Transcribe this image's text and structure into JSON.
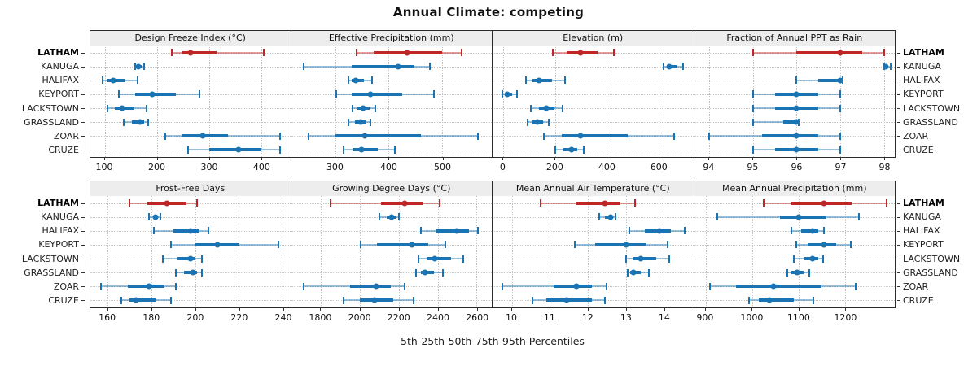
{
  "title": "Annual Climate: competing",
  "caption": "5th-25th-50th-75th-95th Percentiles",
  "stations": [
    "LATHAM",
    "KANUGA",
    "HALIFAX",
    "KEYPORT",
    "LACKSTOWN",
    "GRASSLAND",
    "ZOAR",
    "CRUZE"
  ],
  "highlight_station": "LATHAM",
  "colors": {
    "highlight": "#c02626",
    "normal": "#1a74b4",
    "strip_bg": "#ededed",
    "panel_border": "#2b2b2b",
    "grid": "#c7c7c7"
  },
  "chart_data": [
    {
      "type": "dotplot-interval",
      "label": "Design Freeze Index (°C)",
      "row": 1,
      "xlim": [
        72,
        456
      ],
      "ticks": [
        100,
        200,
        300,
        400
      ],
      "percentile_labels": [
        "5th",
        "25th",
        "50th",
        "75th",
        "95th"
      ],
      "series": [
        {
          "station": "LATHAM",
          "q": [
            229,
            247,
            265,
            315,
            405
          ]
        },
        {
          "station": "KANUGA",
          "q": [
            158,
            161,
            165,
            170,
            175
          ]
        },
        {
          "station": "HALIFAX",
          "q": [
            95,
            105,
            116,
            140,
            162
          ]
        },
        {
          "station": "KEYPORT",
          "q": [
            127,
            158,
            191,
            237,
            281
          ]
        },
        {
          "station": "LACKSTOWN",
          "q": [
            105,
            119,
            133,
            157,
            180
          ]
        },
        {
          "station": "GRASSLAND",
          "q": [
            136,
            152,
            167,
            176,
            183
          ]
        },
        {
          "station": "ZOAR",
          "q": [
            216,
            247,
            288,
            336,
            436
          ]
        },
        {
          "station": "CRUZE",
          "q": [
            259,
            300,
            357,
            400,
            436
          ]
        }
      ]
    },
    {
      "type": "dotplot-interval",
      "label": "Effective Precipitation (mm)",
      "row": 1,
      "xlim": [
        217,
        593
      ],
      "ticks": [
        300,
        400,
        500
      ],
      "series": [
        {
          "station": "LATHAM",
          "q": [
            340,
            372,
            435,
            500,
            537
          ]
        },
        {
          "station": "KANUGA",
          "q": [
            240,
            330,
            418,
            448,
            477
          ]
        },
        {
          "station": "HALIFAX",
          "q": [
            325,
            331,
            339,
            354,
            369
          ]
        },
        {
          "station": "KEYPORT",
          "q": [
            301,
            330,
            365,
            425,
            484
          ]
        },
        {
          "station": "LACKSTOWN",
          "q": [
            332,
            342,
            352,
            364,
            375
          ]
        },
        {
          "station": "GRASSLAND",
          "q": [
            325,
            337,
            348,
            357,
            366
          ]
        },
        {
          "station": "ZOAR",
          "q": [
            250,
            300,
            355,
            460,
            567
          ]
        },
        {
          "station": "CRUZE",
          "q": [
            316,
            332,
            349,
            380,
            411
          ]
        }
      ]
    },
    {
      "type": "dotplot-interval",
      "label": "Elevation (m)",
      "row": 1,
      "xlim": [
        -42,
        735
      ],
      "ticks": [
        0,
        200,
        400,
        600
      ],
      "series": [
        {
          "station": "LATHAM",
          "q": [
            190,
            245,
            300,
            365,
            428
          ]
        },
        {
          "station": "KANUGA",
          "q": [
            620,
            632,
            643,
            670,
            697
          ]
        },
        {
          "station": "HALIFAX",
          "q": [
            86,
            112,
            138,
            187,
            237
          ]
        },
        {
          "station": "KEYPORT",
          "q": [
            -4,
            5,
            14,
            33,
            52
          ]
        },
        {
          "station": "LACKSTOWN",
          "q": [
            107,
            137,
            167,
            198,
            229
          ]
        },
        {
          "station": "GRASSLAND",
          "q": [
            93,
            111,
            130,
            152,
            175
          ]
        },
        {
          "station": "ZOAR",
          "q": [
            157,
            227,
            297,
            480,
            662
          ]
        },
        {
          "station": "CRUZE",
          "q": [
            200,
            232,
            265,
            287,
            310
          ]
        }
      ]
    },
    {
      "type": "dotplot-interval",
      "label": "Fraction of Annual PPT as Rain",
      "row": 1,
      "xlim": [
        93.65,
        98.25
      ],
      "ticks": [
        94,
        95,
        96,
        97,
        98
      ],
      "series": [
        {
          "station": "LATHAM",
          "q": [
            95,
            96,
            97,
            97.5,
            98
          ]
        },
        {
          "station": "KANUGA",
          "q": [
            98,
            98,
            98.05,
            98.1,
            98.15
          ]
        },
        {
          "station": "HALIFAX",
          "q": [
            96,
            96.5,
            97,
            97,
            97.05
          ]
        },
        {
          "station": "KEYPORT",
          "q": [
            95,
            95.5,
            96,
            96.5,
            97
          ]
        },
        {
          "station": "LACKSTOWN",
          "q": [
            95,
            95.5,
            96,
            96.5,
            97
          ]
        },
        {
          "station": "GRASSLAND",
          "q": [
            95,
            95.7,
            96,
            96,
            96.05
          ]
        },
        {
          "station": "ZOAR",
          "q": [
            94,
            95.2,
            96,
            96.5,
            97
          ]
        },
        {
          "station": "CRUZE",
          "q": [
            95,
            95.5,
            96,
            96.5,
            97
          ]
        }
      ]
    },
    {
      "type": "dotplot-interval",
      "label": "Frost-Free Days",
      "row": 2,
      "xlim": [
        152,
        243.5
      ],
      "ticks": [
        160,
        180,
        200,
        220,
        240
      ],
      "series": [
        {
          "station": "LATHAM",
          "q": [
            170,
            178,
            187,
            196,
            201
          ]
        },
        {
          "station": "KANUGA",
          "q": [
            179,
            181,
            182,
            183,
            184
          ]
        },
        {
          "station": "HALIFAX",
          "q": [
            181,
            190,
            198,
            202,
            206
          ]
        },
        {
          "station": "KEYPORT",
          "q": [
            189,
            200,
            210,
            220,
            238
          ]
        },
        {
          "station": "LACKSTOWN",
          "q": [
            185,
            192,
            198,
            200,
            203
          ]
        },
        {
          "station": "GRASSLAND",
          "q": [
            191,
            195,
            199,
            201,
            203
          ]
        },
        {
          "station": "ZOAR",
          "q": [
            157,
            169,
            179,
            186,
            191
          ]
        },
        {
          "station": "CRUZE",
          "q": [
            166,
            170,
            173,
            182,
            189
          ]
        }
      ]
    },
    {
      "type": "dotplot-interval",
      "label": "Growing Degree Days (°C)",
      "row": 2,
      "xlim": [
        1647,
        2678
      ],
      "ticks": [
        1800,
        2000,
        2200,
        2400,
        2600
      ],
      "series": [
        {
          "station": "LATHAM",
          "q": [
            1850,
            2110,
            2230,
            2325,
            2410
          ]
        },
        {
          "station": "KANUGA",
          "q": [
            2100,
            2140,
            2165,
            2185,
            2200
          ]
        },
        {
          "station": "HALIFAX",
          "q": [
            2315,
            2390,
            2500,
            2560,
            2605
          ]
        },
        {
          "station": "KEYPORT",
          "q": [
            2005,
            2090,
            2270,
            2350,
            2440
          ]
        },
        {
          "station": "LACKSTOWN",
          "q": [
            2300,
            2345,
            2385,
            2470,
            2530
          ]
        },
        {
          "station": "GRASSLAND",
          "q": [
            2290,
            2315,
            2335,
            2380,
            2425
          ]
        },
        {
          "station": "ZOAR",
          "q": [
            1712,
            1950,
            2085,
            2160,
            2230
          ]
        },
        {
          "station": "CRUZE",
          "q": [
            1915,
            2000,
            2075,
            2170,
            2278
          ]
        }
      ]
    },
    {
      "type": "dotplot-interval",
      "label": "Mean Annual Air Temperature (°C)",
      "row": 2,
      "xlim": [
        9.49,
        14.78
      ],
      "ticks": [
        10,
        11,
        12,
        13,
        14
      ],
      "series": [
        {
          "station": "LATHAM",
          "q": [
            10.75,
            11.7,
            12.45,
            12.85,
            13.25
          ]
        },
        {
          "station": "KANUGA",
          "q": [
            12.3,
            12.45,
            12.6,
            12.67,
            12.72
          ]
        },
        {
          "station": "HALIFAX",
          "q": [
            13.1,
            13.5,
            13.9,
            14.2,
            14.55
          ]
        },
        {
          "station": "KEYPORT",
          "q": [
            11.65,
            12.2,
            13.0,
            13.55,
            14.1
          ]
        },
        {
          "station": "LACKSTOWN",
          "q": [
            13.0,
            13.2,
            13.4,
            13.8,
            14.15
          ]
        },
        {
          "station": "GRASSLAND",
          "q": [
            13.05,
            13.12,
            13.2,
            13.4,
            13.6
          ]
        },
        {
          "station": "ZOAR",
          "q": [
            9.75,
            11.1,
            11.7,
            12.1,
            12.5
          ]
        },
        {
          "station": "CRUZE",
          "q": [
            10.55,
            10.9,
            11.45,
            12.1,
            12.45
          ]
        }
      ]
    },
    {
      "type": "dotplot-interval",
      "label": "Mean Annual Precipitation (mm)",
      "row": 2,
      "xlim": [
        875,
        1307
      ],
      "ticks": [
        900,
        1000,
        1100,
        1200
      ],
      "series": [
        {
          "station": "LATHAM",
          "q": [
            1025,
            1085,
            1155,
            1215,
            1290
          ]
        },
        {
          "station": "KANUGA",
          "q": [
            925,
            1060,
            1100,
            1160,
            1230
          ]
        },
        {
          "station": "HALIFAX",
          "q": [
            1085,
            1105,
            1130,
            1142,
            1155
          ]
        },
        {
          "station": "KEYPORT",
          "q": [
            1095,
            1120,
            1155,
            1180,
            1213
          ]
        },
        {
          "station": "LACKSTOWN",
          "q": [
            1090,
            1110,
            1130,
            1142,
            1153
          ]
        },
        {
          "station": "GRASSLAND",
          "q": [
            1075,
            1085,
            1096,
            1110,
            1123
          ]
        },
        {
          "station": "ZOAR",
          "q": [
            910,
            965,
            1045,
            1150,
            1223
          ]
        },
        {
          "station": "CRUZE",
          "q": [
            993,
            1015,
            1037,
            1090,
            1132
          ]
        }
      ]
    }
  ]
}
